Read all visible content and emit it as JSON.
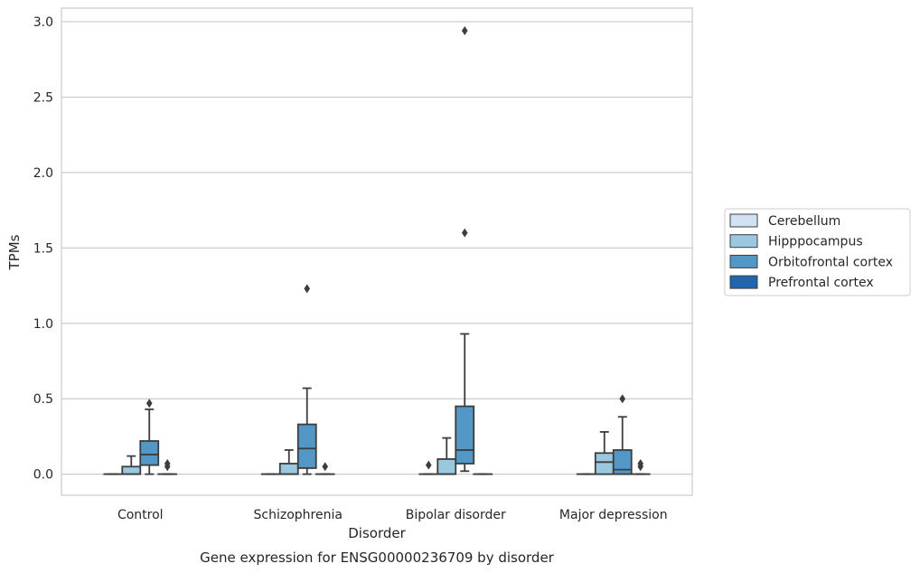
{
  "chart_data": {
    "type": "box",
    "title": "Gene expression for ENSG00000236709 by disorder",
    "xlabel": "Disorder",
    "ylabel": "TPMs",
    "ylim": [
      -0.14,
      3.09
    ],
    "yticks": [
      "0.0",
      "0.5",
      "1.0",
      "1.5",
      "2.0",
      "2.5",
      "3.0"
    ],
    "categories": [
      "Control",
      "Schizophrenia",
      "Bipolar disorder",
      "Major depression"
    ],
    "grid": "horizontal",
    "legend_position": "right",
    "series": [
      {
        "name": "Cerebellum",
        "color": "#d1e2f2",
        "boxes": [
          {
            "whislo": 0,
            "q1": 0,
            "med": 0,
            "q3": 0,
            "whishi": 0,
            "fliers": []
          },
          {
            "whislo": 0,
            "q1": 0,
            "med": 0,
            "q3": 0,
            "whishi": 0,
            "fliers": []
          },
          {
            "whislo": 0,
            "q1": 0,
            "med": 0,
            "q3": 0,
            "whishi": 0,
            "fliers": [
              0.06
            ]
          },
          {
            "whislo": 0,
            "q1": 0,
            "med": 0,
            "q3": 0,
            "whishi": 0,
            "fliers": []
          }
        ]
      },
      {
        "name": "Hipppocampus",
        "color": "#9ac8e0",
        "boxes": [
          {
            "whislo": 0,
            "q1": 0,
            "med": 0,
            "q3": 0.05,
            "whishi": 0.12,
            "fliers": []
          },
          {
            "whislo": 0,
            "q1": 0,
            "med": 0,
            "q3": 0.07,
            "whishi": 0.16,
            "fliers": []
          },
          {
            "whislo": 0,
            "q1": 0,
            "med": 0,
            "q3": 0.1,
            "whishi": 0.24,
            "fliers": []
          },
          {
            "whislo": 0,
            "q1": 0,
            "med": 0.08,
            "q3": 0.14,
            "whishi": 0.28,
            "fliers": []
          }
        ]
      },
      {
        "name": "Orbitofrontal cortex",
        "color": "#5297c6",
        "boxes": [
          {
            "whislo": 0,
            "q1": 0.06,
            "med": 0.13,
            "q3": 0.22,
            "whishi": 0.43,
            "fliers": [
              0.47
            ]
          },
          {
            "whislo": 0,
            "q1": 0.04,
            "med": 0.17,
            "q3": 0.33,
            "whishi": 0.57,
            "fliers": [
              1.23
            ]
          },
          {
            "whislo": 0.02,
            "q1": 0.07,
            "med": 0.16,
            "q3": 0.45,
            "whishi": 0.93,
            "fliers": [
              1.6,
              2.94
            ]
          },
          {
            "whislo": 0,
            "q1": 0,
            "med": 0.03,
            "q3": 0.16,
            "whishi": 0.38,
            "fliers": [
              0.5
            ]
          }
        ]
      },
      {
        "name": "Prefrontal cortex",
        "color": "#2166ac",
        "boxes": [
          {
            "whislo": 0,
            "q1": 0,
            "med": 0,
            "q3": 0,
            "whishi": 0,
            "fliers": [
              0.05,
              0.07
            ]
          },
          {
            "whislo": 0,
            "q1": 0,
            "med": 0,
            "q3": 0,
            "whishi": 0,
            "fliers": [
              0.05
            ]
          },
          {
            "whislo": 0,
            "q1": 0,
            "med": 0,
            "q3": 0,
            "whishi": 0,
            "fliers": []
          },
          {
            "whislo": 0,
            "q1": 0,
            "med": 0,
            "q3": 0,
            "whishi": 0,
            "fliers": [
              0.05,
              0.07
            ]
          }
        ]
      }
    ]
  }
}
